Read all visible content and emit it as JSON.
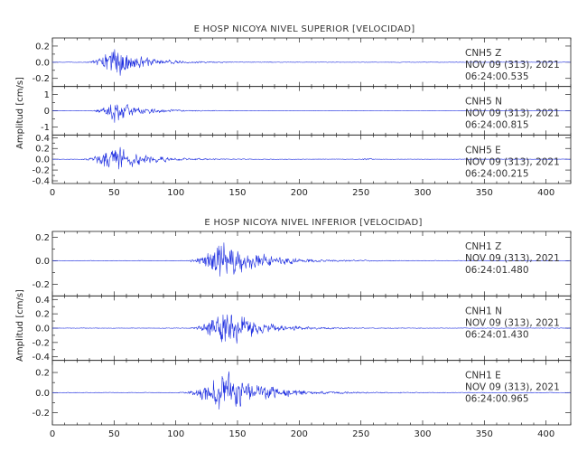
{
  "chart_data": [
    {
      "type": "line",
      "title": "E HOSP NICOYA NIVEL SUPERIOR [VELOCIDAD]",
      "ylabel": "Amplitud [cm/s]",
      "xlim": [
        0,
        420
      ],
      "x_ticks": [
        "0",
        "50",
        "100",
        "150",
        "200",
        "250",
        "300",
        "350",
        "400"
      ],
      "series": [
        {
          "name": "CNH5 Z",
          "station": "CNH5",
          "component": "Z",
          "date": "NOV 09 (313), 2021",
          "time": "06:24:00.535",
          "ylim": [
            -0.3,
            0.3
          ],
          "y_ticks": [
            "0.2",
            "0.0",
            "-0.2"
          ],
          "y_tick_values": [
            0.2,
            0.0,
            -0.2
          ],
          "color": "#1f2fe0",
          "onset": 25,
          "peak_time": 48,
          "peak_amplitude": 0.26,
          "coda_decay": 22,
          "noise_level": 0.004,
          "extra_bursts": []
        },
        {
          "name": "CNH5 N",
          "station": "CNH5",
          "component": "N",
          "date": "NOV 09 (313), 2021",
          "time": "06:24:00.815",
          "ylim": [
            -1.5,
            1.5
          ],
          "y_ticks": [
            "1",
            "0",
            "-1"
          ],
          "y_tick_values": [
            1,
            0,
            -1
          ],
          "color": "#1f2fe0",
          "onset": 28,
          "peak_time": 50,
          "peak_amplitude": 0.9,
          "coda_decay": 20,
          "noise_level": 0.015,
          "extra_bursts": []
        },
        {
          "name": "CNH5 E",
          "station": "CNH5",
          "component": "E",
          "date": "NOV 09 (313), 2021",
          "time": "06:24:00.215",
          "ylim": [
            -0.45,
            0.45
          ],
          "y_ticks": [
            "0.4",
            "0.2",
            "0.0",
            "-0.2",
            "-0.4"
          ],
          "y_tick_values": [
            0.4,
            0.2,
            0.0,
            -0.2,
            -0.4
          ],
          "color": "#1f2fe0",
          "onset": 20,
          "peak_time": 47,
          "peak_amplitude": 0.34,
          "coda_decay": 24,
          "noise_level": 0.006,
          "extra_bursts": [
            {
              "time": 255,
              "amplitude": 0.02,
              "width": 4
            }
          ]
        }
      ]
    },
    {
      "type": "line",
      "title": "E HOSP NICOYA NIVEL INFERIOR [VELOCIDAD]",
      "ylabel": "Amplitud [cm/s]",
      "xlim": [
        0,
        420
      ],
      "x_ticks": [
        "0",
        "50",
        "100",
        "150",
        "200",
        "250",
        "300",
        "350",
        "400"
      ],
      "series": [
        {
          "name": "CNH1 Z",
          "station": "CNH1",
          "component": "Z",
          "date": "NOV 09 (313), 2021",
          "time": "06:24:01.480",
          "ylim": [
            -0.3,
            0.25
          ],
          "y_ticks": [
            "0.2",
            "0.0",
            "-0.2"
          ],
          "y_tick_values": [
            0.2,
            0.0,
            -0.2
          ],
          "color": "#1f2fe0",
          "onset": 105,
          "peak_time": 137,
          "peak_amplitude": 0.24,
          "coda_decay": 28,
          "noise_level": 0.003,
          "extra_bursts": []
        },
        {
          "name": "CNH1 N",
          "station": "CNH1",
          "component": "N",
          "date": "NOV 09 (313), 2021",
          "time": "06:24:01.430",
          "ylim": [
            -0.45,
            0.45
          ],
          "y_ticks": [
            "0.4",
            "0.2",
            "0.0",
            "-0.2",
            "-0.4"
          ],
          "y_tick_values": [
            0.4,
            0.2,
            0.0,
            -0.2,
            -0.4
          ],
          "color": "#1f2fe0",
          "onset": 108,
          "peak_time": 138,
          "peak_amplitude": 0.36,
          "coda_decay": 26,
          "noise_level": 0.005,
          "extra_bursts": []
        },
        {
          "name": "CNH1 E",
          "station": "CNH1",
          "component": "E",
          "date": "NOV 09 (313), 2021",
          "time": "06:24:00.965",
          "ylim": [
            -0.32,
            0.32
          ],
          "y_ticks": [
            "0.2",
            "0.0",
            "-0.2"
          ],
          "y_tick_values": [
            0.2,
            0.0,
            -0.2
          ],
          "color": "#1f2fe0",
          "onset": 100,
          "peak_time": 136,
          "peak_amplitude": 0.28,
          "coda_decay": 30,
          "noise_level": 0.004,
          "extra_bursts": []
        }
      ]
    }
  ]
}
